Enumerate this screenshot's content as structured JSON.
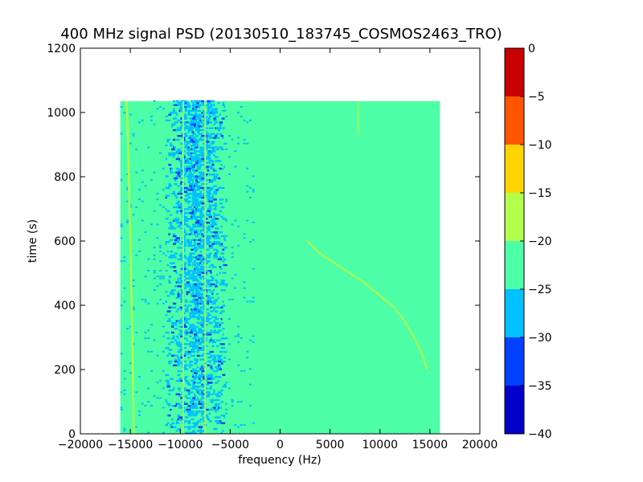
{
  "chart_data": {
    "type": "heatmap",
    "title": "400 MHz signal PSD (20130510_183745_COSMOS2463_TRO)",
    "xlabel": "frequency (Hz)",
    "ylabel": "time (s)",
    "xlim": [
      -20000,
      20000
    ],
    "ylim": [
      0,
      1200
    ],
    "xticks": [
      -20000,
      -15000,
      -10000,
      -5000,
      0,
      5000,
      10000,
      15000,
      20000
    ],
    "xtick_labels": [
      "−20000",
      "−15000",
      "−10000",
      "−5000",
      "0",
      "5000",
      "10000",
      "15000",
      "20000"
    ],
    "yticks": [
      0,
      200,
      400,
      600,
      800,
      1000,
      1200
    ],
    "ytick_labels": [
      "0",
      "200",
      "400",
      "600",
      "800",
      "1000",
      "1200"
    ],
    "data_extent": {
      "freq_min": -16000,
      "freq_max": 16000,
      "time_min": 0,
      "time_max": 1035
    },
    "background_level": -22.5,
    "noisy_band": {
      "freq_min": -11500,
      "freq_max": -5500,
      "level_min": -30,
      "level_max": -22
    },
    "carrier_line": {
      "level": -17.5,
      "points": [
        [
          -14650,
          0
        ],
        [
          -14750,
          200
        ],
        [
          -14900,
          450
        ],
        [
          -15000,
          600
        ],
        [
          -15150,
          800
        ],
        [
          -15350,
          1035
        ]
      ]
    },
    "doppler_track": {
      "level": -17.5,
      "points": [
        [
          2700,
          600
        ],
        [
          4000,
          560
        ],
        [
          6000,
          520
        ],
        [
          8000,
          480
        ],
        [
          10000,
          430
        ],
        [
          11500,
          390
        ],
        [
          12500,
          350
        ],
        [
          13400,
          300
        ],
        [
          14200,
          250
        ],
        [
          14700,
          200
        ]
      ]
    },
    "vertical_lines": [
      {
        "freq": -9700,
        "level": -17.5
      },
      {
        "freq": -7500,
        "level": -19
      },
      {
        "freq": 7800,
        "level": -19,
        "time_min": 930,
        "time_max": 1035
      }
    ],
    "colorbar": {
      "levels": [
        -40,
        -35,
        -30,
        -25,
        -20,
        -15,
        -10,
        -5,
        0
      ],
      "tick_labels": [
        "−40",
        "−35",
        "−30",
        "−25",
        "−20",
        "−15",
        "−10",
        "−5",
        "0"
      ],
      "colors": [
        "#0000c8",
        "#0040ff",
        "#00c0ff",
        "#4dffa6",
        "#b3ff4d",
        "#ffd400",
        "#ff5500",
        "#c80000"
      ]
    }
  }
}
